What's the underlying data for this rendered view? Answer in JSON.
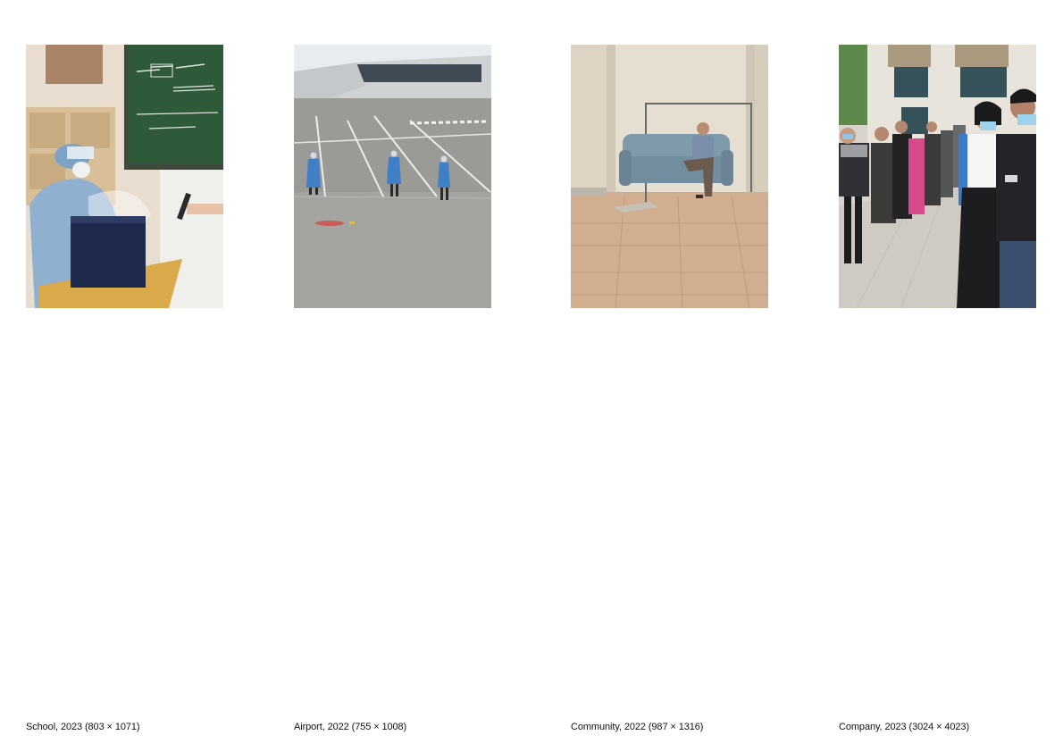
{
  "photos": [
    {
      "caption": "School, 2023 (803 × 1071)",
      "scene": "school"
    },
    {
      "caption": "Airport, 2022 (755 × 1008)",
      "scene": "airport"
    },
    {
      "caption": "Community, 2022 (987 × 1316)",
      "scene": "community"
    },
    {
      "caption": "Company, 2023 (3024 × 4023)",
      "scene": "company"
    }
  ]
}
